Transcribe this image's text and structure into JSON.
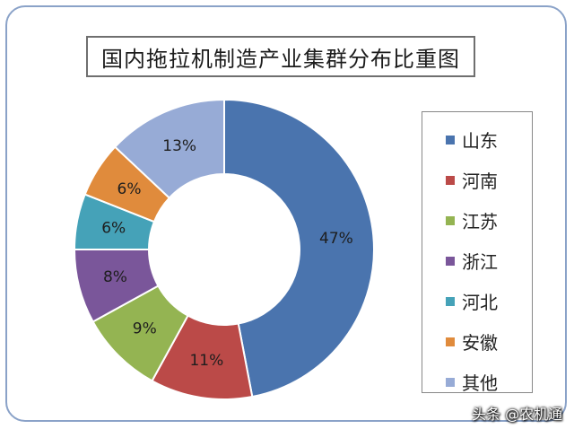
{
  "chart_data": {
    "type": "pie",
    "title": "国内拖拉机制造产业集群分布比重图",
    "categories": [
      "山东",
      "河南",
      "江苏",
      "浙江",
      "河北",
      "安徽",
      "其他"
    ],
    "values": [
      47,
      11,
      9,
      8,
      6,
      6,
      13
    ],
    "value_labels": [
      "47%",
      "11%",
      "9%",
      "8%",
      "6%",
      "6%",
      "13%"
    ],
    "colors": [
      "#4a74ae",
      "#bb4a48",
      "#94b452",
      "#7a569a",
      "#45a2b8",
      "#e08b3c",
      "#97abd6"
    ],
    "donut": true,
    "legend_position": "right"
  },
  "watermark": "头条 @农机通"
}
